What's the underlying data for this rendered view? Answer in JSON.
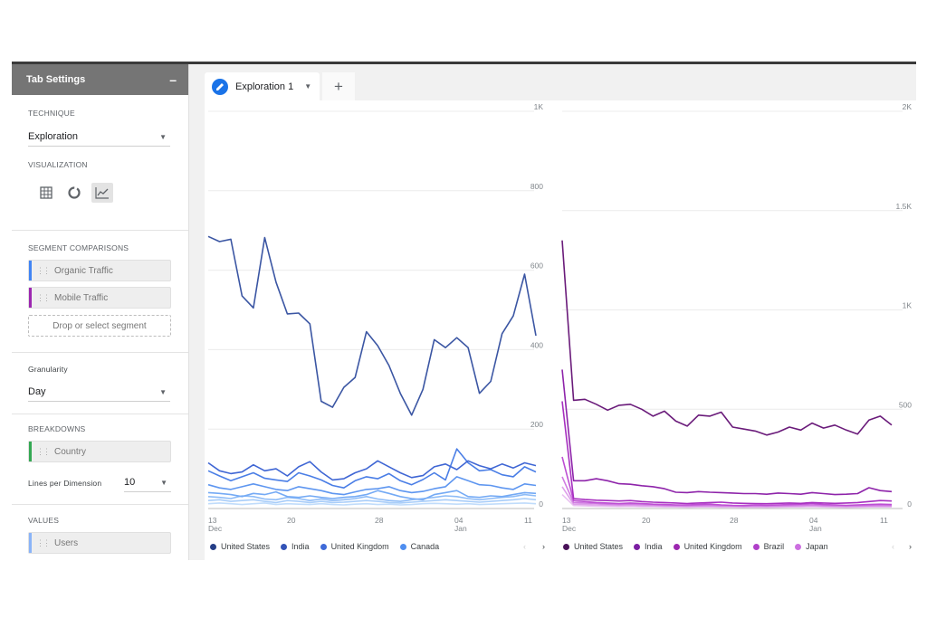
{
  "sidebar": {
    "title": "Tab Settings",
    "collapse_glyph": "–",
    "technique": {
      "label": "TECHNIQUE",
      "value": "Exploration"
    },
    "visualization": {
      "label": "VISUALIZATION",
      "icons": [
        "table-icon",
        "donut-icon",
        "line-chart-icon"
      ],
      "active": "line-chart-icon"
    },
    "segments": {
      "label": "SEGMENT COMPARISONS",
      "items": [
        {
          "label": "Organic Traffic",
          "color": "#4285f4"
        },
        {
          "label": "Mobile Traffic",
          "color": "#9c27b0"
        }
      ],
      "drop_label": "Drop or select segment"
    },
    "granularity": {
      "label": "Granularity",
      "value": "Day"
    },
    "breakdowns": {
      "label": "BREAKDOWNS",
      "items": [
        {
          "label": "Country",
          "color": "#34a853"
        }
      ],
      "lines_label": "Lines per Dimension",
      "lines_value": "10"
    },
    "values": {
      "label": "VALUES",
      "items": [
        {
          "label": "Users",
          "color": "#8ab4f8"
        }
      ]
    }
  },
  "tabs": {
    "items": [
      {
        "label": "Exploration 1"
      }
    ],
    "add_glyph": "+"
  },
  "chart_data": [
    {
      "type": "line",
      "segment": "Organic Traffic",
      "x_tick_labels": [
        {
          "day": "13",
          "month": "Dec"
        },
        {
          "day": "20",
          "month": ""
        },
        {
          "day": "28",
          "month": ""
        },
        {
          "day": "04",
          "month": "Jan"
        },
        {
          "day": "11",
          "month": ""
        }
      ],
      "y_tick_labels": [
        "0",
        "200",
        "400",
        "600",
        "800",
        "1K"
      ],
      "ylim": [
        0,
        1000
      ],
      "grid": true,
      "legend_position": "bottom",
      "series": [
        {
          "name": "United States",
          "color": "#3b56a3",
          "values": [
            685,
            672,
            678,
            535,
            505,
            682,
            570,
            490,
            492,
            465,
            270,
            255,
            305,
            330,
            445,
            410,
            360,
            290,
            235,
            300,
            425,
            405,
            430,
            405,
            290,
            320,
            440,
            485,
            590,
            435
          ]
        },
        {
          "name": "India",
          "color": "#3f66d4",
          "values": [
            115,
            95,
            88,
            92,
            110,
            95,
            100,
            82,
            105,
            118,
            92,
            72,
            75,
            90,
            100,
            120,
            105,
            90,
            78,
            83,
            105,
            112,
            98,
            120,
            108,
            100,
            112,
            102,
            115,
            108
          ]
        },
        {
          "name": "United Kingdom",
          "color": "#4a7ee6",
          "values": [
            95,
            82,
            70,
            80,
            90,
            76,
            72,
            68,
            90,
            82,
            72,
            58,
            52,
            70,
            80,
            75,
            88,
            70,
            60,
            73,
            90,
            72,
            150,
            115,
            95,
            98,
            85,
            80,
            105,
            92
          ]
        },
        {
          "name": "Canada",
          "color": "#5e96f0",
          "values": [
            60,
            52,
            48,
            55,
            62,
            55,
            48,
            45,
            55,
            50,
            45,
            38,
            35,
            42,
            48,
            50,
            55,
            45,
            40,
            43,
            50,
            55,
            80,
            70,
            60,
            58,
            52,
            48,
            62,
            58
          ]
        },
        {
          "name": "",
          "color": "#74aaf5",
          "values": [
            40,
            38,
            35,
            30,
            38,
            35,
            42,
            30,
            28,
            32,
            28,
            25,
            28,
            30,
            35,
            45,
            38,
            30,
            25,
            22,
            35,
            40,
            45,
            30,
            28,
            32,
            30,
            35,
            40,
            38
          ]
        },
        {
          "name": "",
          "color": "#8ebcf7",
          "values": [
            30,
            28,
            25,
            32,
            30,
            24,
            22,
            28,
            25,
            20,
            24,
            20,
            22,
            25,
            30,
            24,
            20,
            18,
            22,
            25,
            28,
            32,
            30,
            25,
            22,
            25,
            28,
            30,
            35,
            32
          ]
        },
        {
          "name": "",
          "color": "#a8cdf9",
          "values": [
            20,
            22,
            18,
            20,
            22,
            18,
            15,
            20,
            18,
            15,
            18,
            15,
            16,
            18,
            20,
            18,
            15,
            14,
            16,
            18,
            20,
            22,
            20,
            18,
            16,
            18,
            20,
            22,
            25,
            22
          ]
        },
        {
          "name": "",
          "color": "#c0dcfb",
          "values": [
            12,
            14,
            12,
            10,
            12,
            14,
            10,
            12,
            11,
            10,
            12,
            10,
            9,
            11,
            12,
            10,
            11,
            9,
            10,
            12,
            13,
            12,
            11,
            12,
            10,
            11,
            12,
            13,
            14,
            12
          ]
        }
      ]
    },
    {
      "type": "line",
      "segment": "Mobile Traffic",
      "x_tick_labels": [
        {
          "day": "13",
          "month": "Dec"
        },
        {
          "day": "20",
          "month": ""
        },
        {
          "day": "28",
          "month": ""
        },
        {
          "day": "04",
          "month": "Jan"
        },
        {
          "day": "11",
          "month": ""
        }
      ],
      "y_tick_labels": [
        "0",
        "500",
        "1K",
        "1.5K",
        "2K"
      ],
      "ylim": [
        0,
        2000
      ],
      "grid": true,
      "legend_position": "bottom",
      "series": [
        {
          "name": "United States",
          "color": "#6a1b7a",
          "values": [
            1350,
            545,
            550,
            525,
            495,
            520,
            525,
            500,
            465,
            490,
            440,
            415,
            470,
            465,
            485,
            410,
            400,
            390,
            370,
            385,
            410,
            395,
            430,
            405,
            420,
            395,
            375,
            445,
            465,
            420
          ]
        },
        {
          "name": "India",
          "color": "#8e24aa",
          "values": [
            700,
            140,
            140,
            150,
            140,
            125,
            122,
            115,
            110,
            100,
            82,
            80,
            85,
            82,
            80,
            78,
            75,
            75,
            72,
            78,
            75,
            72,
            80,
            75,
            70,
            72,
            75,
            105,
            90,
            85
          ]
        },
        {
          "name": "United Kingdom",
          "color": "#a72fc0",
          "values": [
            540,
            50,
            45,
            42,
            40,
            38,
            40,
            35,
            32,
            30,
            28,
            25,
            28,
            30,
            32,
            28,
            26,
            25,
            24,
            26,
            28,
            26,
            30,
            28,
            26,
            28,
            30,
            35,
            40,
            38
          ]
        },
        {
          "name": "Brazil",
          "color": "#bd4fd3",
          "values": [
            260,
            40,
            35,
            30,
            28,
            25,
            28,
            25,
            22,
            20,
            18,
            18,
            20,
            22,
            18,
            16,
            15,
            18,
            16,
            18,
            20,
            22,
            25,
            20,
            18,
            16,
            18,
            20,
            22,
            20
          ]
        },
        {
          "name": "Japan",
          "color": "#d07be2",
          "values": [
            160,
            30,
            28,
            25,
            22,
            20,
            22,
            20,
            18,
            16,
            15,
            14,
            15,
            16,
            14,
            13,
            12,
            14,
            13,
            14,
            15,
            16,
            18,
            15,
            14,
            13,
            14,
            15,
            16,
            15
          ]
        },
        {
          "name": "",
          "color": "#dea0ea",
          "values": [
            110,
            22,
            20,
            18,
            16,
            15,
            16,
            14,
            13,
            12,
            11,
            10,
            11,
            12,
            10,
            10,
            9,
            10,
            9,
            10,
            11,
            12,
            13,
            11,
            10,
            9,
            10,
            11,
            12,
            11
          ]
        },
        {
          "name": "",
          "color": "#e9c1f1",
          "values": [
            70,
            15,
            13,
            12,
            11,
            10,
            11,
            9,
            9,
            8,
            8,
            7,
            8,
            8,
            7,
            7,
            6,
            7,
            6,
            7,
            8,
            8,
            9,
            8,
            7,
            6,
            7,
            8,
            8,
            8
          ]
        }
      ]
    }
  ],
  "legends": [
    {
      "items": [
        "United States",
        "India",
        "United Kingdom",
        "Canada"
      ],
      "colors": [
        "#253e87",
        "#3353b7",
        "#3f6ad8",
        "#4f8ef0"
      ],
      "next": "›",
      "prev": "‹"
    },
    {
      "items": [
        "United States",
        "India",
        "United Kingdom",
        "Brazil",
        "Japan"
      ],
      "colors": [
        "#4a1259",
        "#7b1fa2",
        "#9c27b0",
        "#b040c9",
        "#cc6fe0"
      ],
      "next": "›",
      "prev": "‹"
    }
  ]
}
